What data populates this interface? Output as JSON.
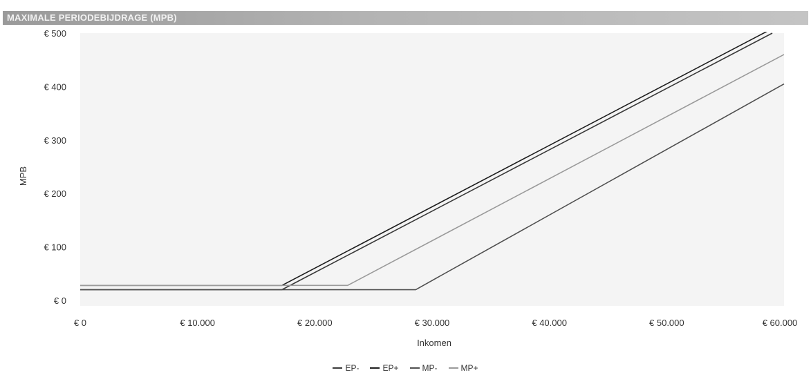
{
  "header": {
    "title": "MAXIMALE PERIODEBIJDRAGE (MPB)"
  },
  "chart_data": {
    "type": "line",
    "title": "",
    "xlabel": "Inkomen",
    "ylabel": "MPB",
    "xlim": [
      0,
      60000
    ],
    "ylim": [
      0,
      500
    ],
    "x_ticks": [
      0,
      10000,
      20000,
      30000,
      40000,
      50000,
      60000
    ],
    "x_tick_labels": [
      "€ 0",
      "€ 10.000",
      "€ 20.000",
      "€ 30.000",
      "€ 40.000",
      "€ 50.000",
      "€ 60.000"
    ],
    "y_ticks": [
      0,
      100,
      200,
      300,
      400,
      500
    ],
    "y_tick_labels": [
      "€ 0",
      "€ 100",
      "€ 200",
      "€ 300",
      "€ 400",
      "€ 500"
    ],
    "grid": false,
    "legend_position": "bottom",
    "series": [
      {
        "name": "EP-",
        "color": "#3a3a3a",
        "x": [
          0,
          17200,
          59000
        ],
        "y": [
          20,
          20,
          500
        ]
      },
      {
        "name": "EP+",
        "color": "#1e1e1e",
        "x": [
          0,
          17200,
          60000
        ],
        "y": [
          28,
          28,
          520
        ]
      },
      {
        "name": "MP-",
        "color": "#505050",
        "x": [
          0,
          28600,
          60000
        ],
        "y": [
          20,
          20,
          405
        ]
      },
      {
        "name": "MP+",
        "color": "#9a9a9a",
        "x": [
          0,
          22800,
          60000
        ],
        "y": [
          28,
          28,
          460
        ]
      }
    ]
  }
}
